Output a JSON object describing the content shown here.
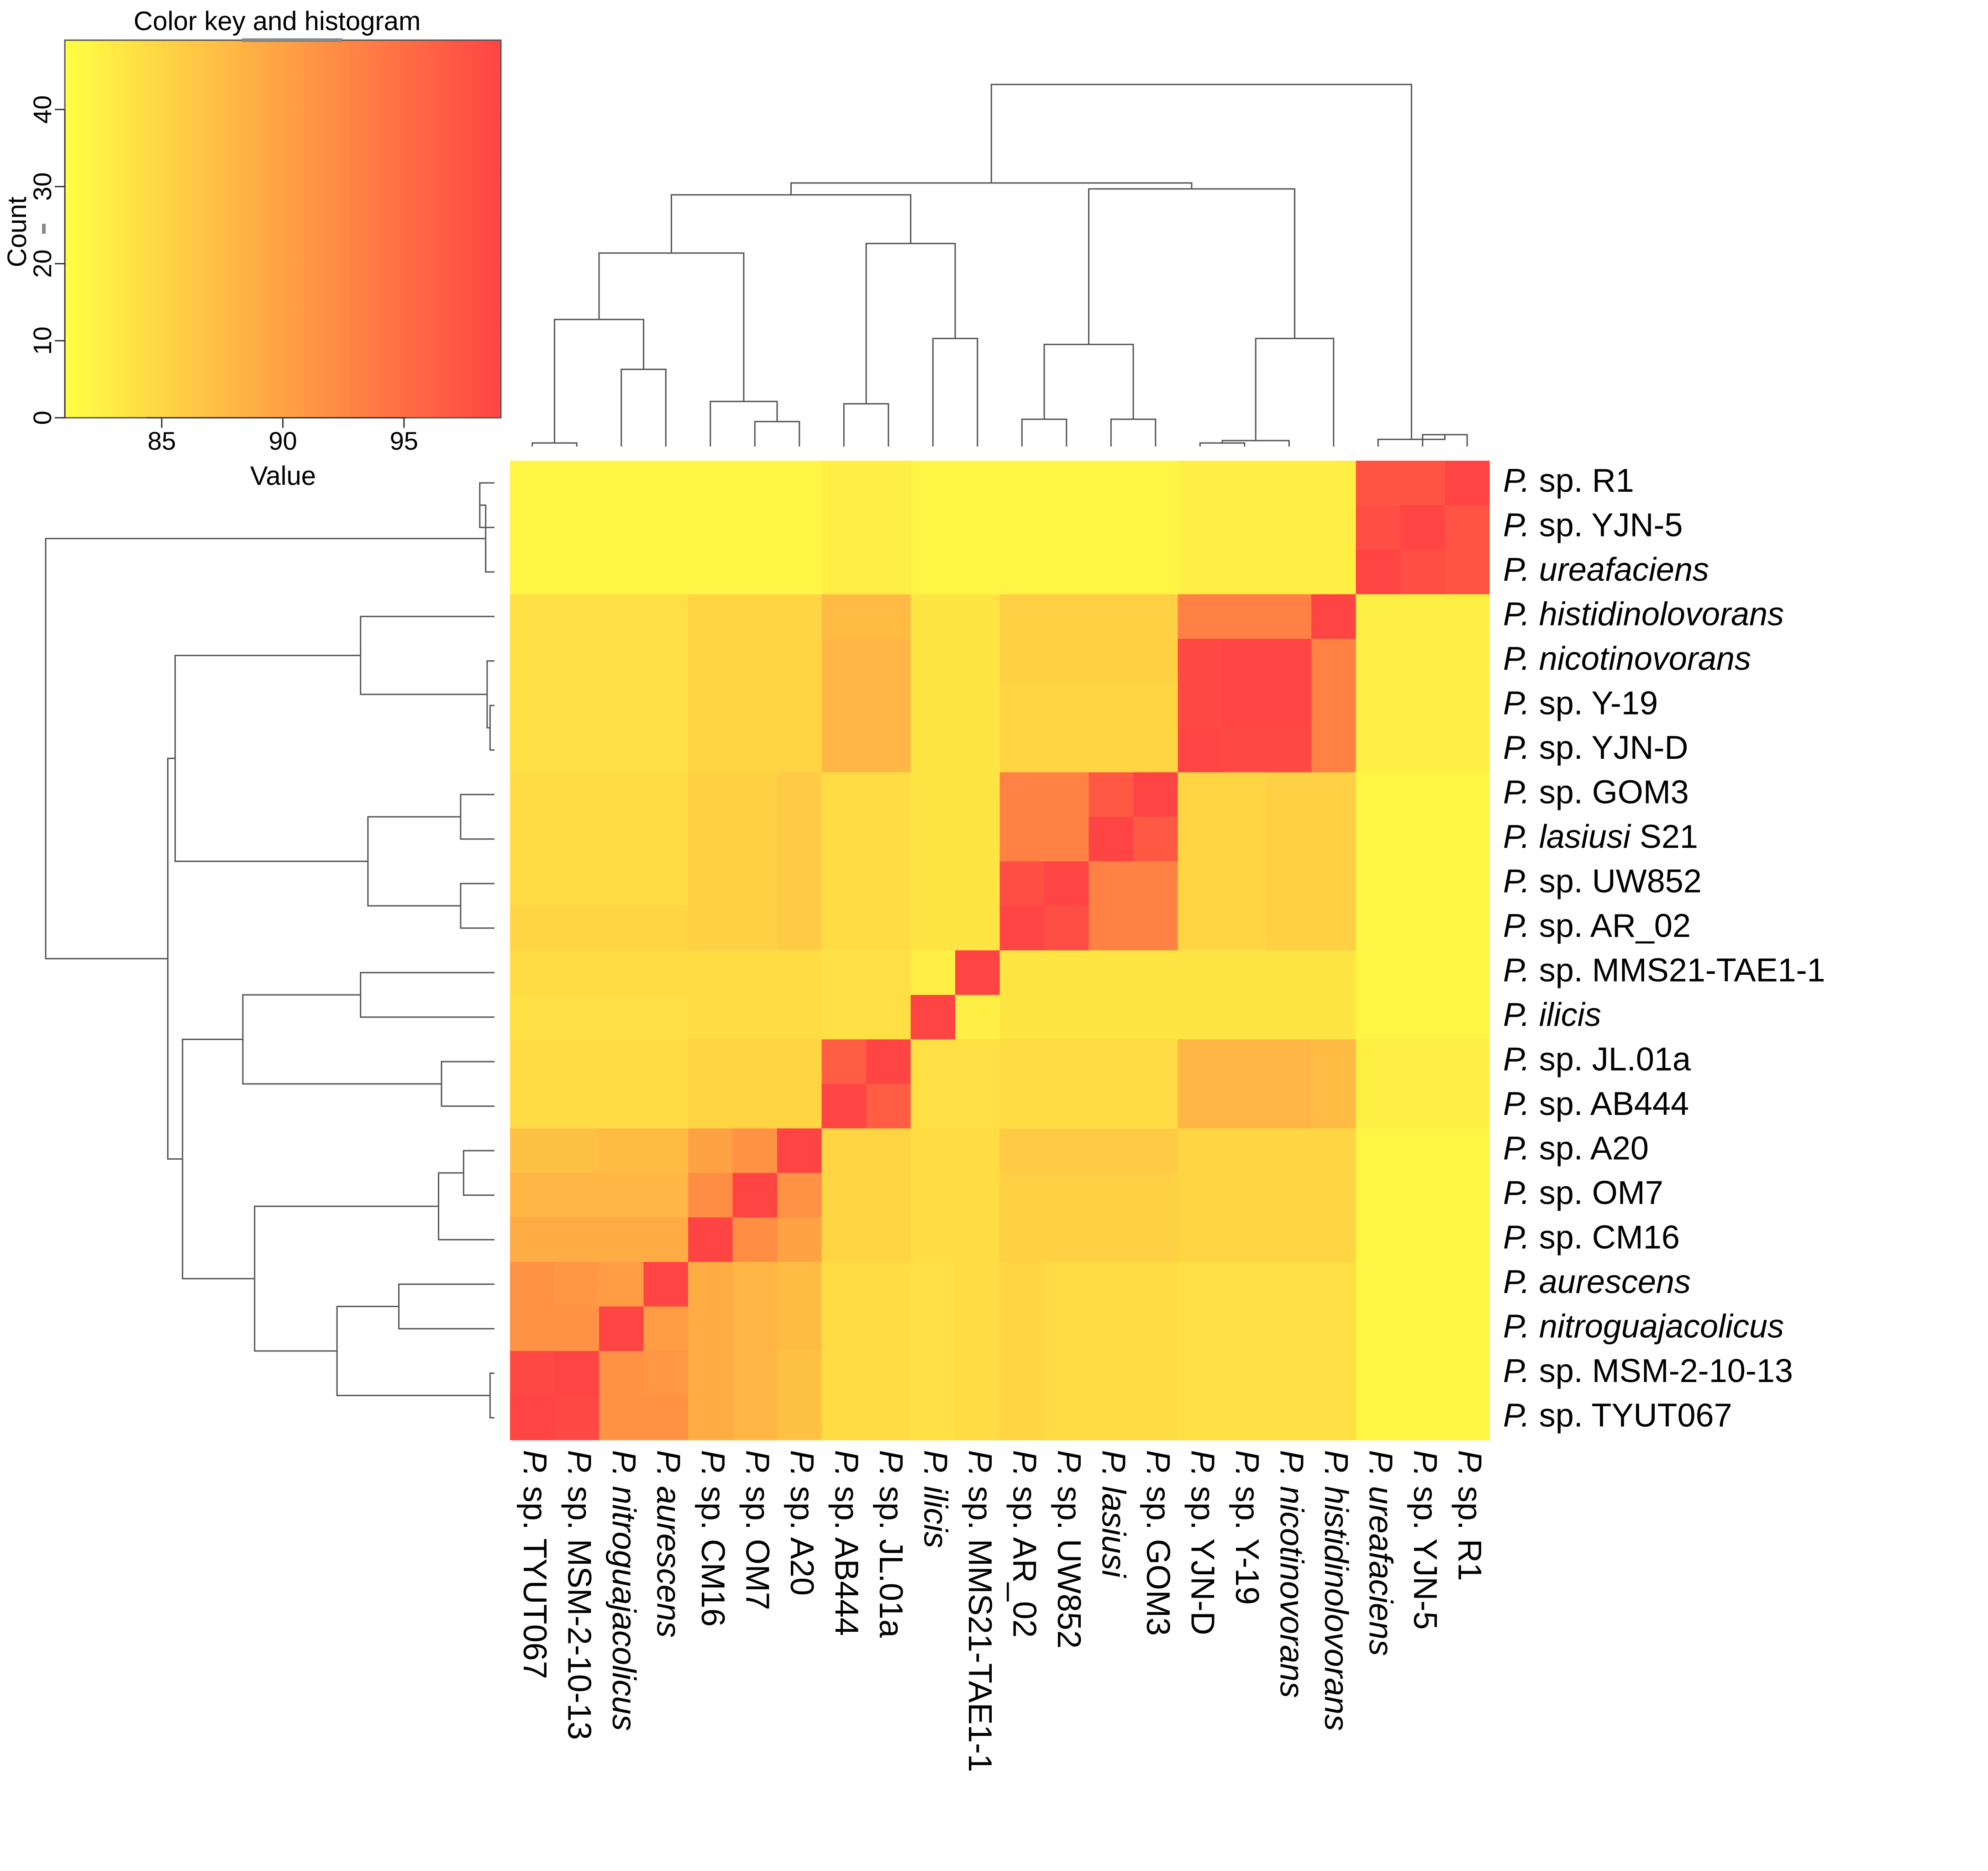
{
  "chart_data": {
    "type": "heatmap",
    "labels_in_order": [
      {
        "genus": "P.",
        "rest": " sp. TYUT067",
        "italic": false,
        "suffix": ""
      },
      {
        "genus": "P.",
        "rest": " sp. MSM-2-10-13",
        "italic": false,
        "suffix": ""
      },
      {
        "genus": "P.",
        "rest": " nitroguajacolicus",
        "italic": true,
        "suffix": ""
      },
      {
        "genus": "P.",
        "rest": " aurescens",
        "italic": true,
        "suffix": ""
      },
      {
        "genus": "P.",
        "rest": " sp. CM16",
        "italic": false,
        "suffix": ""
      },
      {
        "genus": "P.",
        "rest": " sp. OM7",
        "italic": false,
        "suffix": ""
      },
      {
        "genus": "P.",
        "rest": " sp. A20",
        "italic": false,
        "suffix": ""
      },
      {
        "genus": "P.",
        "rest": " sp. AB444",
        "italic": false,
        "suffix": ""
      },
      {
        "genus": "P.",
        "rest": " sp. JL.01a",
        "italic": false,
        "suffix": ""
      },
      {
        "genus": "P.",
        "rest": " ilicis",
        "italic": true,
        "suffix": ""
      },
      {
        "genus": "P.",
        "rest": " sp. MMS21-TAE1-1",
        "italic": false,
        "suffix": ""
      },
      {
        "genus": "P.",
        "rest": " sp. AR_02",
        "italic": false,
        "suffix": ""
      },
      {
        "genus": "P.",
        "rest": " sp. UW852",
        "italic": false,
        "suffix": ""
      },
      {
        "genus": "P.",
        "rest": " lasiusi",
        "italic": true,
        "suffix": " S21"
      },
      {
        "genus": "P.",
        "rest": " sp. GOM3",
        "italic": false,
        "suffix": ""
      },
      {
        "genus": "P.",
        "rest": " sp. YJN-D",
        "italic": false,
        "suffix": ""
      },
      {
        "genus": "P.",
        "rest": " sp. Y-19",
        "italic": false,
        "suffix": ""
      },
      {
        "genus": "P.",
        "rest": " nicotinovorans",
        "italic": true,
        "suffix": ""
      },
      {
        "genus": "P.",
        "rest": " histidinolovorans",
        "italic": true,
        "suffix": ""
      },
      {
        "genus": "P.",
        "rest": " ureafaciens",
        "italic": true,
        "suffix": ""
      },
      {
        "genus": "P.",
        "rest": " sp. YJN-5",
        "italic": false,
        "suffix": ""
      },
      {
        "genus": "P.",
        "rest": " sp. R1",
        "italic": false,
        "suffix": ""
      }
    ],
    "row_labels_bottom_suffix_note": "Row labels use the same list; P. lasiusi carries suffix S21 only on the row side.",
    "column_suffix_hidden_for": [
      " lasiusi"
    ],
    "values": [
      [
        100,
        98.5,
        91.5,
        91.5,
        89,
        88,
        87,
        84.5,
        84.5,
        84,
        84.5,
        85,
        84.5,
        84.5,
        84.5,
        84,
        84,
        84,
        84,
        82,
        82,
        82
      ],
      [
        98.5,
        100,
        91.5,
        91,
        89,
        88,
        87,
        84.5,
        84.5,
        84,
        84.5,
        85,
        84.5,
        84.5,
        84.5,
        84,
        84,
        84,
        84,
        82,
        82,
        82
      ],
      [
        91.5,
        91.5,
        100,
        90.5,
        89,
        88,
        87.5,
        84.5,
        84.5,
        84,
        84.5,
        85,
        84.5,
        84.5,
        84.5,
        84,
        84,
        84,
        84,
        82,
        82,
        82
      ],
      [
        91.5,
        91,
        90.5,
        100,
        89,
        88,
        87.5,
        84.5,
        84.5,
        84,
        84.5,
        85,
        84.5,
        84.5,
        84.5,
        84,
        84,
        84,
        84,
        82,
        82,
        82
      ],
      [
        89,
        89,
        89,
        89,
        100,
        92,
        90,
        85,
        85,
        84.5,
        84.5,
        85.5,
        85.5,
        85.5,
        85.5,
        85,
        85,
        85,
        85,
        82,
        82,
        82
      ],
      [
        88,
        88,
        88,
        88,
        92,
        100,
        91.5,
        85,
        85,
        84.5,
        84.5,
        85.5,
        85.5,
        85.5,
        85.5,
        85,
        85,
        85,
        85,
        82,
        82,
        82
      ],
      [
        87,
        87,
        87.5,
        87.5,
        90,
        91.5,
        100,
        85,
        85,
        84.5,
        84.5,
        86,
        86,
        86,
        86,
        85,
        85,
        85,
        85,
        82,
        82,
        82
      ],
      [
        84.5,
        84.5,
        84.5,
        84.5,
        85,
        85,
        85,
        100,
        96.5,
        84,
        84,
        84.5,
        84.5,
        84.5,
        84.5,
        88,
        88,
        88,
        87.5,
        82.5,
        82.5,
        82.5
      ],
      [
        84.5,
        84.5,
        84.5,
        84.5,
        85,
        85,
        85,
        96.5,
        100,
        84,
        84,
        84.5,
        84.5,
        84.5,
        84.5,
        88,
        88,
        88,
        87.5,
        82.5,
        82.5,
        82.5
      ],
      [
        84,
        84,
        84,
        84,
        84.5,
        84.5,
        84.5,
        84,
        84,
        100,
        82.5,
        83.5,
        83.5,
        83.5,
        83.5,
        83.5,
        83.5,
        83.5,
        83.5,
        82,
        82,
        82
      ],
      [
        84.5,
        84.5,
        84.5,
        84.5,
        84.5,
        84.5,
        84.5,
        84,
        84,
        82.5,
        100,
        83.5,
        83.5,
        83.5,
        83.5,
        83.5,
        83.5,
        83.5,
        83.5,
        82,
        82,
        82
      ],
      [
        85,
        85,
        85,
        85,
        85.5,
        85.5,
        86,
        84.5,
        84.5,
        83.5,
        83.5,
        100,
        98,
        93,
        93,
        85,
        85,
        85.5,
        85.5,
        82,
        82,
        82
      ],
      [
        84.5,
        84.5,
        84.5,
        84.5,
        85.5,
        85.5,
        86,
        84.5,
        84.5,
        83.5,
        83.5,
        98,
        100,
        93,
        93,
        85,
        85,
        85.5,
        85.5,
        82,
        82,
        82
      ],
      [
        84.5,
        84.5,
        84.5,
        84.5,
        85.5,
        85.5,
        86,
        84.5,
        84.5,
        83.5,
        83.5,
        93,
        93,
        100,
        97,
        85,
        85,
        85.5,
        85.5,
        82,
        82,
        82
      ],
      [
        84.5,
        84.5,
        84.5,
        84.5,
        85.5,
        85.5,
        86,
        84.5,
        84.5,
        83.5,
        83.5,
        93,
        93,
        97,
        100,
        85,
        85,
        85.5,
        85.5,
        82,
        82,
        82
      ],
      [
        84,
        84,
        84,
        84,
        85,
        85,
        85,
        88,
        88,
        83.5,
        83.5,
        85,
        85,
        85,
        85,
        100,
        98.5,
        98.5,
        93,
        82.5,
        82.5,
        82.5
      ],
      [
        84,
        84,
        84,
        84,
        85,
        85,
        85,
        88,
        88,
        83.5,
        83.5,
        85,
        85,
        85,
        85,
        98.5,
        100,
        99,
        93,
        82.5,
        82.5,
        82.5
      ],
      [
        84,
        84,
        84,
        84,
        85,
        85,
        85,
        88,
        88,
        83.5,
        83.5,
        85.5,
        85.5,
        85.5,
        85.5,
        98.5,
        99,
        100,
        93,
        82.5,
        82.5,
        82.5
      ],
      [
        84,
        84,
        84,
        84,
        85,
        85,
        85,
        87.5,
        87.5,
        83.5,
        83.5,
        85.5,
        85.5,
        85.5,
        85.5,
        93,
        93,
        93,
        100,
        82.5,
        82.5,
        82.5
      ],
      [
        82,
        82,
        82,
        82,
        82,
        82,
        82,
        82.5,
        82.5,
        82,
        82,
        82,
        82,
        82,
        82,
        82.5,
        82.5,
        82.5,
        82.5,
        100,
        98,
        97.5
      ],
      [
        82,
        82,
        82,
        82,
        82,
        82,
        82,
        82.5,
        82.5,
        82,
        82,
        82,
        82,
        82,
        82,
        82.5,
        82.5,
        82.5,
        82.5,
        98,
        100,
        97.5
      ],
      [
        82,
        82,
        82,
        82,
        82,
        82,
        82,
        82.5,
        82.5,
        82,
        82,
        82,
        82,
        82,
        82,
        82.5,
        82.5,
        82.5,
        82.5,
        97.5,
        97.5,
        100
      ]
    ],
    "color_scale": {
      "low": "#ffff44",
      "high": "#ff4444",
      "value_min": 81,
      "value_max": 99
    },
    "key": {
      "title": "Color key and histogram",
      "xlabel": "Value",
      "ylabel": "Count",
      "x_ticks": [
        "85",
        "90",
        "95"
      ],
      "x_tick_values": [
        85,
        90,
        95
      ],
      "y_ticks": [
        "0",
        "10",
        "20",
        "30",
        "40"
      ],
      "y_tick_values": [
        0,
        10,
        20,
        30,
        40
      ],
      "y_max": 49
    },
    "dendrogram_merges": [
      {
        "a": 0,
        "b": 1,
        "h": 0.3
      },
      {
        "a": 5,
        "b": 6,
        "h": 2.1
      },
      {
        "a": 4,
        "b": "m1",
        "h": 3.8
      },
      {
        "a": 2,
        "b": 3,
        "h": 6.5
      },
      {
        "a": "m0",
        "b": "m3",
        "h": 10.7
      },
      {
        "a": "m4",
        "b": "m2",
        "h": 16.3
      },
      {
        "a": 7,
        "b": 8,
        "h": 3.6
      },
      {
        "a": 9,
        "b": 10,
        "h": 9.1
      },
      {
        "a": "m6",
        "b": "m7",
        "h": 17.1
      },
      {
        "a": "m5",
        "b": "m8",
        "h": 21.2
      },
      {
        "a": 11,
        "b": 12,
        "h": 2.3
      },
      {
        "a": 13,
        "b": 14,
        "h": 2.3
      },
      {
        "a": "m10",
        "b": "m11",
        "h": 8.6
      },
      {
        "a": 15,
        "b": 16,
        "h": 0.3
      },
      {
        "a": "m13",
        "b": 17,
        "h": 0.5
      },
      {
        "a": "m14",
        "b": 18,
        "h": 9.1
      },
      {
        "a": "m12",
        "b": "m15",
        "h": 21.7
      },
      {
        "a": "m9",
        "b": "m16",
        "h": 22.2
      },
      {
        "a": 20,
        "b": 21,
        "h": 1.0
      },
      {
        "a": 19,
        "b": "m18",
        "h": 0.6
      },
      {
        "a": "m17",
        "b": "m19",
        "h": 30.5
      }
    ]
  }
}
